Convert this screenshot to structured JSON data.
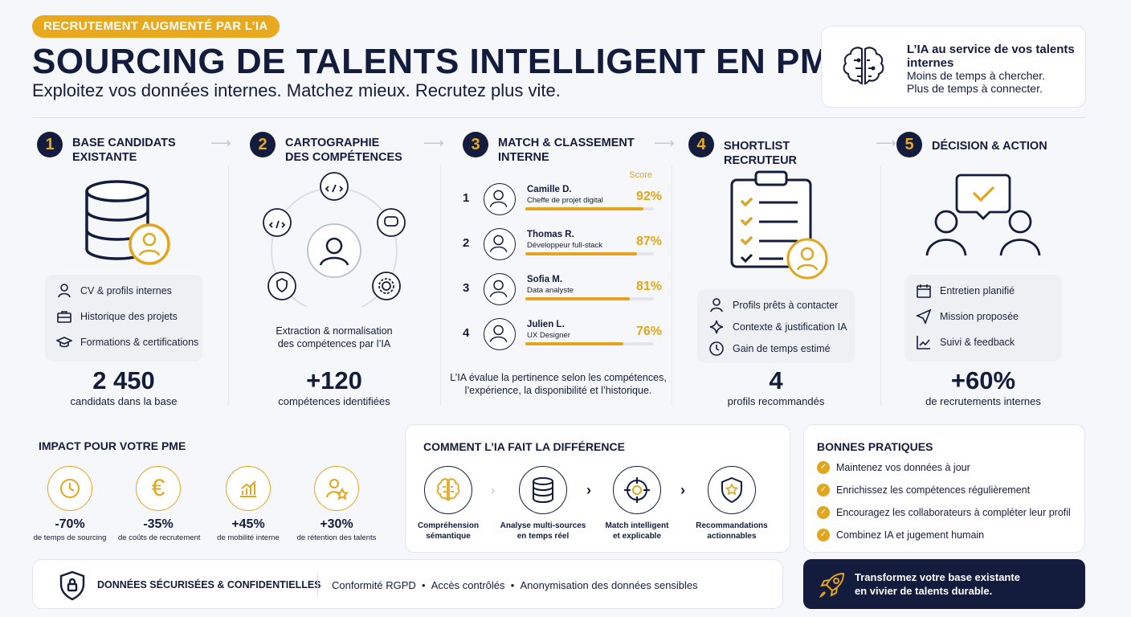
{
  "header": {
    "pill": "RECRUTEMENT AUGMENTÉ PAR L’IA",
    "title": "SOURCING DE TALENTS INTELLIGENT EN PME",
    "subtitle": "Exploitez vos données internes. Matchez mieux. Recrutez plus vite."
  },
  "top_card": {
    "icon": "brain-icon",
    "title": "L’IA au service de vos talents internes",
    "line1": "Moins de temps à chercher.",
    "line2": "Plus de temps à connecter."
  },
  "steps": [
    {
      "number": "1",
      "title_l1": "BASE CANDIDATS",
      "title_l2": "EXISTANTE",
      "items": [
        "CV & profils internes",
        "Historique des projets",
        "Formations & certifications"
      ],
      "stat": "2 450",
      "stat_caption": "candidats dans la base"
    },
    {
      "number": "2",
      "title_l1": "CARTOGRAPHIE",
      "title_l2": "DES COMPÉTENCES",
      "desc_l1": "Extraction & normalisation",
      "desc_l2": "des compétences par l’IA",
      "stat": "+120",
      "stat_caption": "compétences identifiées"
    },
    {
      "number": "3",
      "title_l1": "MATCH & CLASSEMENT",
      "title_l2": "INTERNE",
      "score_label": "Score",
      "candidates": [
        {
          "rank": "1",
          "name": "Camille D.",
          "role": "Cheffe de projet digital",
          "score": "92%",
          "value": 0.92
        },
        {
          "rank": "2",
          "name": "Thomas R.",
          "role": "Développeur full-stack",
          "score": "87%",
          "value": 0.87
        },
        {
          "rank": "3",
          "name": "Sofia M.",
          "role": "Data analyste",
          "score": "81%",
          "value": 0.81
        },
        {
          "rank": "4",
          "name": "Julien L.",
          "role": "UX Designer",
          "score": "76%",
          "value": 0.76
        }
      ],
      "desc_l1": "L’IA évalue la pertinence selon les compétences,",
      "desc_l2": "l’expérience, la disponibilité et l’historique."
    },
    {
      "number": "4",
      "title_l1": "SHORTLIST RECRUTEUR",
      "items": [
        "Profils prêts à contacter",
        "Contexte & justification IA",
        "Gain de temps estimé"
      ],
      "stat": "4",
      "stat_caption": "profils recommandés"
    },
    {
      "number": "5",
      "title_l1": "DÉCISION & ACTION",
      "items": [
        "Entretien planifié",
        "Mission proposée",
        "Suivi & feedback"
      ],
      "stat": "+60%",
      "stat_caption": "de recrutements internes"
    }
  ],
  "impact": {
    "title": "IMPACT POUR VOTRE PME",
    "items": [
      {
        "icon": "clock-icon",
        "value": "-70%",
        "caption": "de temps de sourcing"
      },
      {
        "icon": "euro-icon",
        "value": "-35%",
        "caption": "de coûts de recrutement"
      },
      {
        "icon": "growth-chart-icon",
        "value": "+45%",
        "caption": "de mobilité interne"
      },
      {
        "icon": "star-person-icon",
        "value": "+30%",
        "caption": "de rétention des talents"
      }
    ]
  },
  "how": {
    "title": "COMMENT L’IA FAIT LA DIFFÉRENCE",
    "items": [
      {
        "icon": "brain-icon",
        "l1": "Compréhension",
        "l2": "sémantique"
      },
      {
        "icon": "database-icon",
        "l1": "Analyse multi-sources",
        "l2": "en temps réel"
      },
      {
        "icon": "target-icon",
        "l1": "Match intelligent",
        "l2": "et explicable"
      },
      {
        "icon": "shield-star-icon",
        "l1": "Recommandations",
        "l2": "actionnables"
      }
    ]
  },
  "best_practices": {
    "title": "BONNES PRATIQUES",
    "items": [
      "Maintenez vos données à jour",
      "Enrichissez les compétences régulièrement",
      "Encouragez les collaborateurs à compléter leur profil",
      "Combinez IA et jugement humain"
    ]
  },
  "security": {
    "title": "DONNÉES SÉCURISÉES & CONFIDENTIELLES",
    "items": [
      "Conformité RGPD",
      "Accès contrôlés",
      "Anonymisation des données sensibles"
    ]
  },
  "cta": {
    "l1": "Transformez votre base existante",
    "l2": "en vivier de talents durable."
  },
  "colors": {
    "navy": "#141c3d",
    "gold": "#e3a51c",
    "background": "#f6f7fa"
  }
}
